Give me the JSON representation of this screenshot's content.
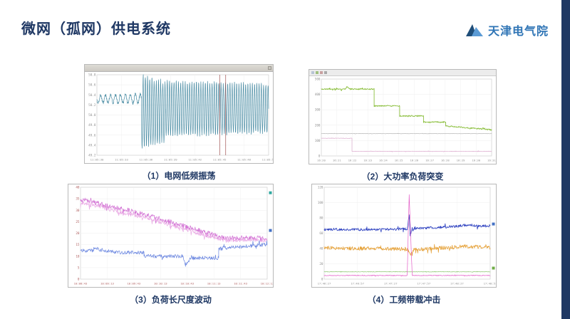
{
  "slide": {
    "title": "微网（孤网）供电系统",
    "logo": {
      "text": "天津电气院",
      "color": "#2E74B5"
    },
    "accent_color": "#1F3864",
    "background": "#FFFFFF"
  },
  "captions": [
    "（1）电网低频振荡",
    "（2）大功率负荷突变",
    "（3）负荷长尺度波动",
    "（4）工频带载冲击"
  ],
  "chart_data": [
    {
      "type": "line",
      "caption": "（1）电网低频振荡",
      "description": "频率录波曲线：前段小幅波动，约四分之一处起发生持续低频振荡，包络先增大后维持等幅",
      "tick_color": "#909090",
      "y_ticks": [
        "50.8",
        "50.6",
        "50.4",
        "50.2",
        "50.0",
        "49.8",
        "49.6",
        "49.4",
        "49.2"
      ],
      "x_ticks": [
        "11:05:30",
        "11:05:33",
        "11:05:36",
        "11:05:39",
        "11:05:42",
        "11:05:45",
        "11:05:48",
        "11:05:51"
      ],
      "series": [
        {
          "name": "trace-teal",
          "color": "#4E8FA6",
          "kind": "wave",
          "width": 0.7,
          "segments": [
            {
              "x0": 0.0,
              "x1": 0.26,
              "base": 0.3,
              "amp0": 0.045,
              "amp1": 0.06,
              "cycles": 9,
              "noise": 0.018
            },
            {
              "x0": 0.26,
              "x1": 0.4,
              "base": 0.46,
              "amp0": 0.46,
              "amp1": 0.36,
              "cycles": 11,
              "noise": 0.03
            },
            {
              "x0": 0.4,
              "x1": 1.0,
              "base": 0.42,
              "amp0": 0.34,
              "amp1": 0.3,
              "cycles": 46,
              "noise": 0.02
            }
          ]
        }
      ],
      "cursors": [
        {
          "x": 0.715,
          "color": "#A05252"
        },
        {
          "x": 0.75,
          "color": "#A05252"
        }
      ]
    },
    {
      "type": "line",
      "caption": "（2）大功率负荷突变",
      "description": "绿色曲线呈多级阶跃下降；中下部有一条水平基准线；左侧粉色曲线阶跃跌落至底部",
      "tick_color": "#909090",
      "y_ticks": [
        "500",
        "400",
        "300",
        "200",
        "100",
        "0"
      ],
      "x_ticks": [
        "16:20",
        "16:21",
        "16:22",
        "16:23",
        "16:24",
        "16:25",
        "16:26",
        "16:27",
        "16:28",
        "16:29",
        "16:30",
        "16:31"
      ],
      "series": [
        {
          "name": "trace-pink",
          "color": "#D8A0C8",
          "kind": "path",
          "width": 0.6,
          "noise": 0.003,
          "points": [
            [
              0,
              0.77
            ],
            [
              0.18,
              0.77
            ],
            [
              0.18,
              0.94
            ],
            [
              1,
              0.94
            ]
          ]
        },
        {
          "name": "trace-gray",
          "color": "#AAAAAA",
          "kind": "path",
          "width": 0.6,
          "noise": 0.002,
          "points": [
            [
              0,
              0.71
            ],
            [
              1,
              0.71
            ]
          ]
        },
        {
          "name": "trace-green",
          "color": "#8CBF3F",
          "kind": "path",
          "width": 0.9,
          "noise": 0.008,
          "points": [
            [
              0,
              0.13
            ],
            [
              0.14,
              0.13
            ],
            [
              0.15,
              0.1
            ],
            [
              0.17,
              0.13
            ],
            [
              0.31,
              0.13
            ],
            [
              0.31,
              0.35
            ],
            [
              0.46,
              0.35
            ],
            [
              0.46,
              0.48
            ],
            [
              0.6,
              0.48
            ],
            [
              0.6,
              0.56
            ],
            [
              0.73,
              0.56
            ],
            [
              0.73,
              0.61
            ],
            [
              1,
              0.66
            ]
          ]
        }
      ],
      "cursors": []
    },
    {
      "type": "line",
      "caption": "（3）负荷长尺度波动",
      "description": "粉色噪声曲线自左上缓慢下降后趋平；蓝色噪声曲线位于下方，带阶跃与中部深谷，末段缓升",
      "tick_color": "#B06060",
      "y_ticks": [
        "40",
        "35",
        "30",
        "25",
        "20",
        "15",
        "10",
        "5",
        "0"
      ],
      "x_ticks": [
        "10:08:43",
        "10:09:13",
        "10:09:43",
        "10:10:13",
        "10:10:43",
        "10:11:13",
        "10:11:43",
        "10:12:13"
      ],
      "series": [
        {
          "name": "trace-magenta",
          "color": "#D16FD3",
          "kind": "path",
          "width": 0.7,
          "noise": 0.028,
          "points": [
            [
              0,
              0.13
            ],
            [
              0.12,
              0.19
            ],
            [
              0.25,
              0.25
            ],
            [
              0.4,
              0.33
            ],
            [
              0.55,
              0.42
            ],
            [
              0.68,
              0.5
            ],
            [
              0.78,
              0.56
            ],
            [
              0.88,
              0.55
            ],
            [
              1,
              0.56
            ]
          ]
        },
        {
          "name": "trace-magenta-light",
          "color": "#E9A8E4",
          "kind": "path",
          "width": 0.7,
          "noise": 0.022,
          "points": [
            [
              0,
              0.17
            ],
            [
              0.12,
              0.22
            ],
            [
              0.25,
              0.29
            ],
            [
              0.4,
              0.36
            ],
            [
              0.55,
              0.45
            ],
            [
              0.68,
              0.53
            ],
            [
              0.78,
              0.58
            ],
            [
              0.88,
              0.57
            ],
            [
              1,
              0.58
            ]
          ]
        },
        {
          "name": "trace-blue",
          "color": "#6A86E0",
          "kind": "path",
          "width": 0.7,
          "noise": 0.02,
          "points": [
            [
              0,
              0.69
            ],
            [
              0.07,
              0.69
            ],
            [
              0.07,
              0.67
            ],
            [
              0.2,
              0.71
            ],
            [
              0.34,
              0.71
            ],
            [
              0.34,
              0.75
            ],
            [
              0.5,
              0.75
            ],
            [
              0.55,
              0.75
            ],
            [
              0.56,
              0.85
            ],
            [
              0.59,
              0.77
            ],
            [
              0.74,
              0.77
            ],
            [
              0.74,
              0.67
            ],
            [
              0.85,
              0.65
            ],
            [
              1,
              0.62
            ]
          ]
        }
      ],
      "cursors": [],
      "legend_markers": [
        {
          "color": "#2FA8A0",
          "y": 0.06
        },
        {
          "color": "#4472C4",
          "y": 0.47
        }
      ]
    },
    {
      "type": "line",
      "caption": "（4）工频带载冲击",
      "description": "蓝色曲线基本平稳，中部受冲击出现尖峰后略升；橙色噪声曲线位于下方；中部粉色瞬时冲击尖峰直达顶部；底部绿色水平线",
      "tick_color": "#909090",
      "y_ticks": [
        "120",
        "100",
        "80",
        "60",
        "40",
        "20",
        "0"
      ],
      "x_ticks": [
        "17:46:27",
        "17:46:57",
        "17:47:27",
        "17:47:57",
        "17:48:27",
        "17:48:57"
      ],
      "series": [
        {
          "name": "trace-green",
          "color": "#7FBF5F",
          "kind": "path",
          "width": 0.6,
          "noise": 0.003,
          "points": [
            [
              0,
              0.92
            ],
            [
              1,
              0.92
            ]
          ]
        },
        {
          "name": "trace-orange",
          "color": "#E6A33C",
          "kind": "path",
          "width": 0.8,
          "noise": 0.02,
          "points": [
            [
              0,
              0.66
            ],
            [
              0.3,
              0.67
            ],
            [
              0.5,
              0.67
            ],
            [
              0.52,
              0.73
            ],
            [
              0.535,
              0.68
            ],
            [
              0.7,
              0.66
            ],
            [
              0.85,
              0.645
            ],
            [
              1,
              0.655
            ]
          ]
        },
        {
          "name": "trace-blue",
          "color": "#2B3FBF",
          "kind": "path",
          "width": 0.8,
          "noise": 0.014,
          "points": [
            [
              0,
              0.46
            ],
            [
              0.3,
              0.46
            ],
            [
              0.5,
              0.455
            ],
            [
              0.512,
              0.3
            ],
            [
              0.518,
              0.52
            ],
            [
              0.53,
              0.45
            ],
            [
              0.65,
              0.44
            ],
            [
              0.8,
              0.425
            ],
            [
              0.87,
              0.405
            ],
            [
              0.93,
              0.425
            ],
            [
              1,
              0.42
            ]
          ]
        },
        {
          "name": "trace-pink-spike",
          "color": "#E45FC8",
          "kind": "path",
          "width": 0.7,
          "noise": 0.004,
          "points": [
            [
              0,
              0.96
            ],
            [
              0.5,
              0.96
            ],
            [
              0.512,
              0.08
            ],
            [
              0.53,
              0.96
            ],
            [
              1,
              0.96
            ]
          ]
        }
      ],
      "cursors": [],
      "legend_markers": [
        {
          "color": "#4472C4",
          "y": 0.4
        },
        {
          "color": "#70AD47",
          "y": 0.88
        }
      ]
    }
  ]
}
